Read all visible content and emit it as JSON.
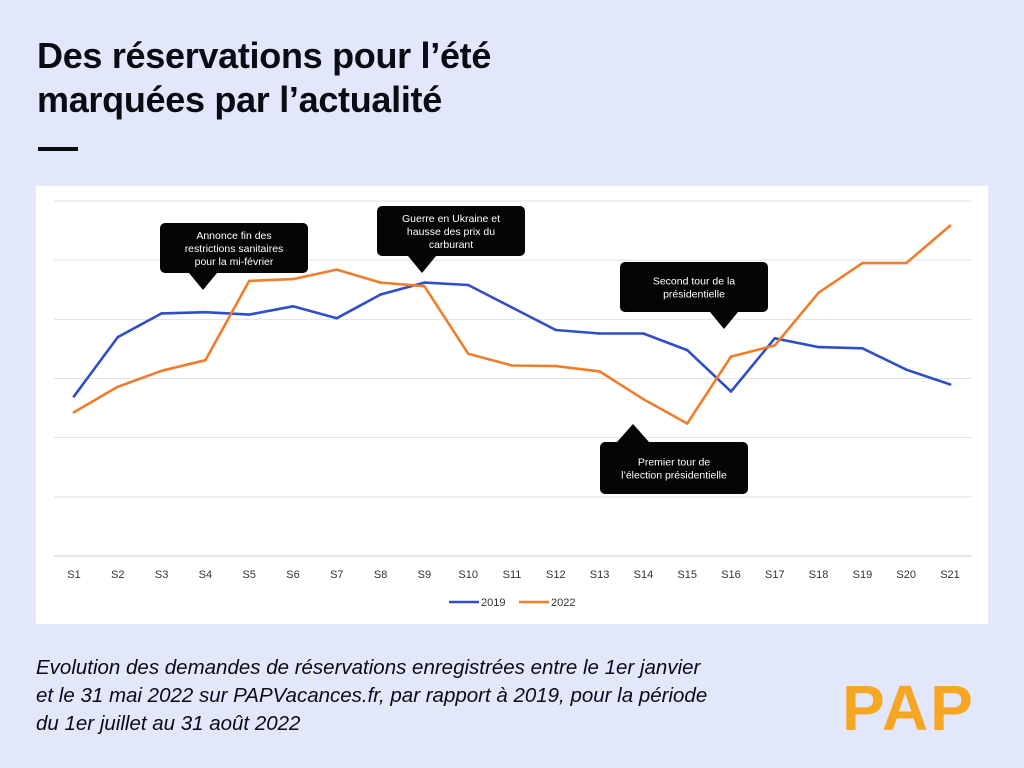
{
  "header": {
    "title_lines": [
      "Des réservations pour l’été",
      "marquées par l’actualité"
    ]
  },
  "caption": {
    "lines": [
      "Evolution des demandes de réservations enregistrées entre le 1er janvier",
      "et le 31 mai 2022 sur PAPVacances.fr, par rapport à 2019, pour la période",
      "du 1er juillet au 31 août 2022"
    ]
  },
  "logo": {
    "text": "PAP"
  },
  "chart_data": {
    "type": "line",
    "title": "",
    "xlabel": "",
    "ylabel": "",
    "categories": [
      "S1",
      "S2",
      "S3",
      "S4",
      "S5",
      "S6",
      "S7",
      "S8",
      "S9",
      "S10",
      "S11",
      "S12",
      "S13",
      "S14",
      "S15",
      "S16",
      "S17",
      "S18",
      "S19",
      "S20",
      "S21"
    ],
    "ylim": [
      0,
      6
    ],
    "grid": true,
    "legend_position": "bottom-center",
    "series": [
      {
        "name": "2019",
        "color": "#2e4fc9",
        "values": [
          2.7,
          3.7,
          4.1,
          4.12,
          4.08,
          4.22,
          4.02,
          4.42,
          4.62,
          4.58,
          4.2,
          3.82,
          3.76,
          3.76,
          3.48,
          2.78,
          3.68,
          3.53,
          3.51,
          3.15,
          2.9
        ]
      },
      {
        "name": "2022",
        "color": "#f07d2b",
        "values": [
          2.43,
          2.86,
          3.13,
          3.31,
          4.65,
          4.68,
          4.84,
          4.62,
          4.56,
          3.42,
          3.22,
          3.21,
          3.12,
          2.65,
          2.24,
          3.37,
          3.56,
          4.45,
          4.95,
          4.95,
          5.58
        ]
      }
    ],
    "annotations": [
      {
        "id": "fin-restrictions",
        "lines": [
          "Annonce fin des",
          "restrictions sanitaires",
          "pour la mi-février"
        ],
        "at": "S4",
        "pointer": "down"
      },
      {
        "id": "ukraine",
        "lines": [
          "Guerre en Ukraine et",
          "hausse des prix du",
          "carburant"
        ],
        "at": "S9",
        "pointer": "down"
      },
      {
        "id": "second-tour",
        "lines": [
          "Second tour de la",
          "présidentielle"
        ],
        "at": "S16",
        "pointer": "down"
      },
      {
        "id": "premier-tour",
        "lines": [
          "Premier tour de",
          "l’élection présidentielle"
        ],
        "at": "S14",
        "pointer": "up"
      }
    ]
  }
}
